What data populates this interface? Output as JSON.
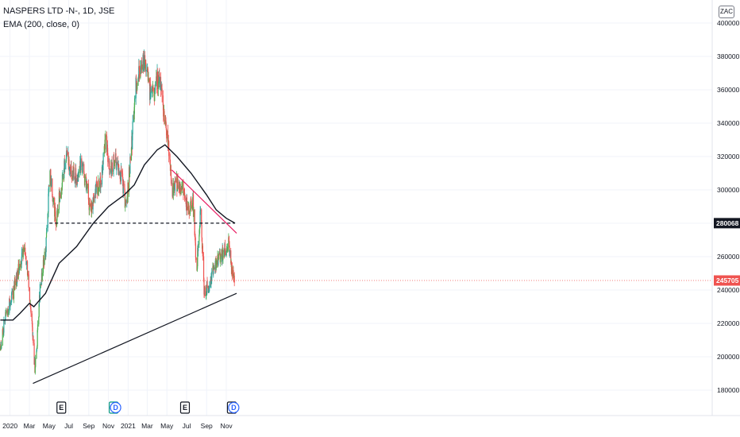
{
  "legend": {
    "symbol": "NASPERS LTD -N-, 1D, JSE",
    "indicator": "EMA (200, close, 0)"
  },
  "currency": "ZAC",
  "colors": {
    "up": "#26a69a",
    "upBright": "#4caf50",
    "down": "#ef5350",
    "ema": "#131722",
    "trendDown": "#e91e63",
    "support": "#131722",
    "grid": "#f0f3fa",
    "earnings": "#131722",
    "dividend": "#2962ff",
    "lastPrice": "#ef5350"
  },
  "chart_data": {
    "type": "candlestick",
    "title": "NASPERS LTD -N-, 1D, JSE",
    "y_axis": {
      "range": [
        170000,
        405000
      ],
      "ticks": [
        180000,
        200000,
        220000,
        240000,
        260000,
        280000,
        300000,
        320000,
        340000,
        360000,
        380000,
        400000
      ]
    },
    "x_axis": {
      "ticks": [
        {
          "label": "2020",
          "date": "2020-01-01"
        },
        {
          "label": "Mar",
          "date": "2020-03-01"
        },
        {
          "label": "May",
          "date": "2020-05-01"
        },
        {
          "label": "Jul",
          "date": "2020-07-01"
        },
        {
          "label": "Sep",
          "date": "2020-09-01"
        },
        {
          "label": "Nov",
          "date": "2020-11-01"
        },
        {
          "label": "2021",
          "date": "2021-01-01"
        },
        {
          "label": "Mar",
          "date": "2021-03-01"
        },
        {
          "label": "May",
          "date": "2021-05-01"
        },
        {
          "label": "Jul",
          "date": "2021-07-01"
        },
        {
          "label": "Sep",
          "date": "2021-09-01"
        },
        {
          "label": "Nov",
          "date": "2021-11-01"
        }
      ]
    },
    "price_path": [
      [
        "2019-12-02",
        205000
      ],
      [
        "2019-12-15",
        222000
      ],
      [
        "2020-01-10",
        238000
      ],
      [
        "2020-02-01",
        256000
      ],
      [
        "2020-02-15",
        268000
      ],
      [
        "2020-02-28",
        245000
      ],
      [
        "2020-03-18",
        193000
      ],
      [
        "2020-03-24",
        205000
      ],
      [
        "2020-04-03",
        242000
      ],
      [
        "2020-04-20",
        262000
      ],
      [
        "2020-05-04",
        312000
      ],
      [
        "2020-05-12",
        298000
      ],
      [
        "2020-05-22",
        280000
      ],
      [
        "2020-06-05",
        300000
      ],
      [
        "2020-06-25",
        322000
      ],
      [
        "2020-07-10",
        310000
      ],
      [
        "2020-07-25",
        308000
      ],
      [
        "2020-08-08",
        318000
      ],
      [
        "2020-08-28",
        300000
      ],
      [
        "2020-09-06",
        286000
      ],
      [
        "2020-09-16",
        298000
      ],
      [
        "2020-10-08",
        305000
      ],
      [
        "2020-10-24",
        332000
      ],
      [
        "2020-11-05",
        310000
      ],
      [
        "2020-11-22",
        318000
      ],
      [
        "2020-12-10",
        310000
      ],
      [
        "2020-12-26",
        288000
      ],
      [
        "2021-01-10",
        322000
      ],
      [
        "2021-01-24",
        360000
      ],
      [
        "2021-02-05",
        372000
      ],
      [
        "2021-02-22",
        378000
      ],
      [
        "2021-03-08",
        360000
      ],
      [
        "2021-03-22",
        355000
      ],
      [
        "2021-04-05",
        370000
      ],
      [
        "2021-04-20",
        348000
      ],
      [
        "2021-05-04",
        332000
      ],
      [
        "2021-05-16",
        300000
      ],
      [
        "2021-06-01",
        304000
      ],
      [
        "2021-06-20",
        300000
      ],
      [
        "2021-07-06",
        286000
      ],
      [
        "2021-07-20",
        296000
      ],
      [
        "2021-08-01",
        252000
      ],
      [
        "2021-08-14",
        290000
      ],
      [
        "2021-08-24",
        238000
      ],
      [
        "2021-09-05",
        242000
      ],
      [
        "2021-09-22",
        252000
      ],
      [
        "2021-10-08",
        258000
      ],
      [
        "2021-10-28",
        265000
      ],
      [
        "2021-11-08",
        268000
      ],
      [
        "2021-11-18",
        250000
      ],
      [
        "2021-11-26",
        245705
      ]
    ],
    "ema200": [
      [
        "2019-12-02",
        222000
      ],
      [
        "2020-01-10",
        222000
      ],
      [
        "2020-02-01",
        226000
      ],
      [
        "2020-03-01",
        232000
      ],
      [
        "2020-03-15",
        230000
      ],
      [
        "2020-04-20",
        238000
      ],
      [
        "2020-06-01",
        256000
      ],
      [
        "2020-07-25",
        266000
      ],
      [
        "2020-09-15",
        280000
      ],
      [
        "2020-11-01",
        290000
      ],
      [
        "2020-12-20",
        297000
      ],
      [
        "2021-01-20",
        303000
      ],
      [
        "2021-02-20",
        315000
      ],
      [
        "2021-04-01",
        324000
      ],
      [
        "2021-04-25",
        327000
      ],
      [
        "2021-06-01",
        320000
      ],
      [
        "2021-07-15",
        310000
      ],
      [
        "2021-09-01",
        297000
      ],
      [
        "2021-10-01",
        288000
      ],
      [
        "2021-11-01",
        283000
      ],
      [
        "2021-11-28",
        280068
      ]
    ],
    "lines": {
      "support": {
        "from": [
          "2020-03-12",
          184000
        ],
        "to": [
          "2021-12-03",
          238000
        ]
      },
      "resistance": {
        "from": [
          "2020-05-02",
          280068
        ],
        "to": [
          "2021-11-28",
          280068
        ],
        "style": "dashed"
      },
      "downtrend": {
        "from": [
          "2021-05-16",
          312000
        ],
        "to": [
          "2021-12-03",
          274000
        ]
      }
    },
    "current_price": 245705,
    "price_labels": [
      {
        "value": 280068,
        "text": "280068"
      },
      {
        "value": 245705,
        "text": "245705"
      }
    ],
    "events": [
      {
        "date": "2020-06-08",
        "label": "E",
        "kind": "earnings"
      },
      {
        "date": "2020-11-17",
        "label": "E",
        "kind": "earnings-dividend"
      },
      {
        "date": "2020-11-23",
        "label": "D",
        "kind": "dividend"
      },
      {
        "date": "2021-06-26",
        "label": "E",
        "kind": "earnings"
      },
      {
        "date": "2021-11-18",
        "label": "E",
        "kind": "earnings"
      },
      {
        "date": "2021-11-24",
        "label": "D",
        "kind": "dividend"
      }
    ]
  }
}
